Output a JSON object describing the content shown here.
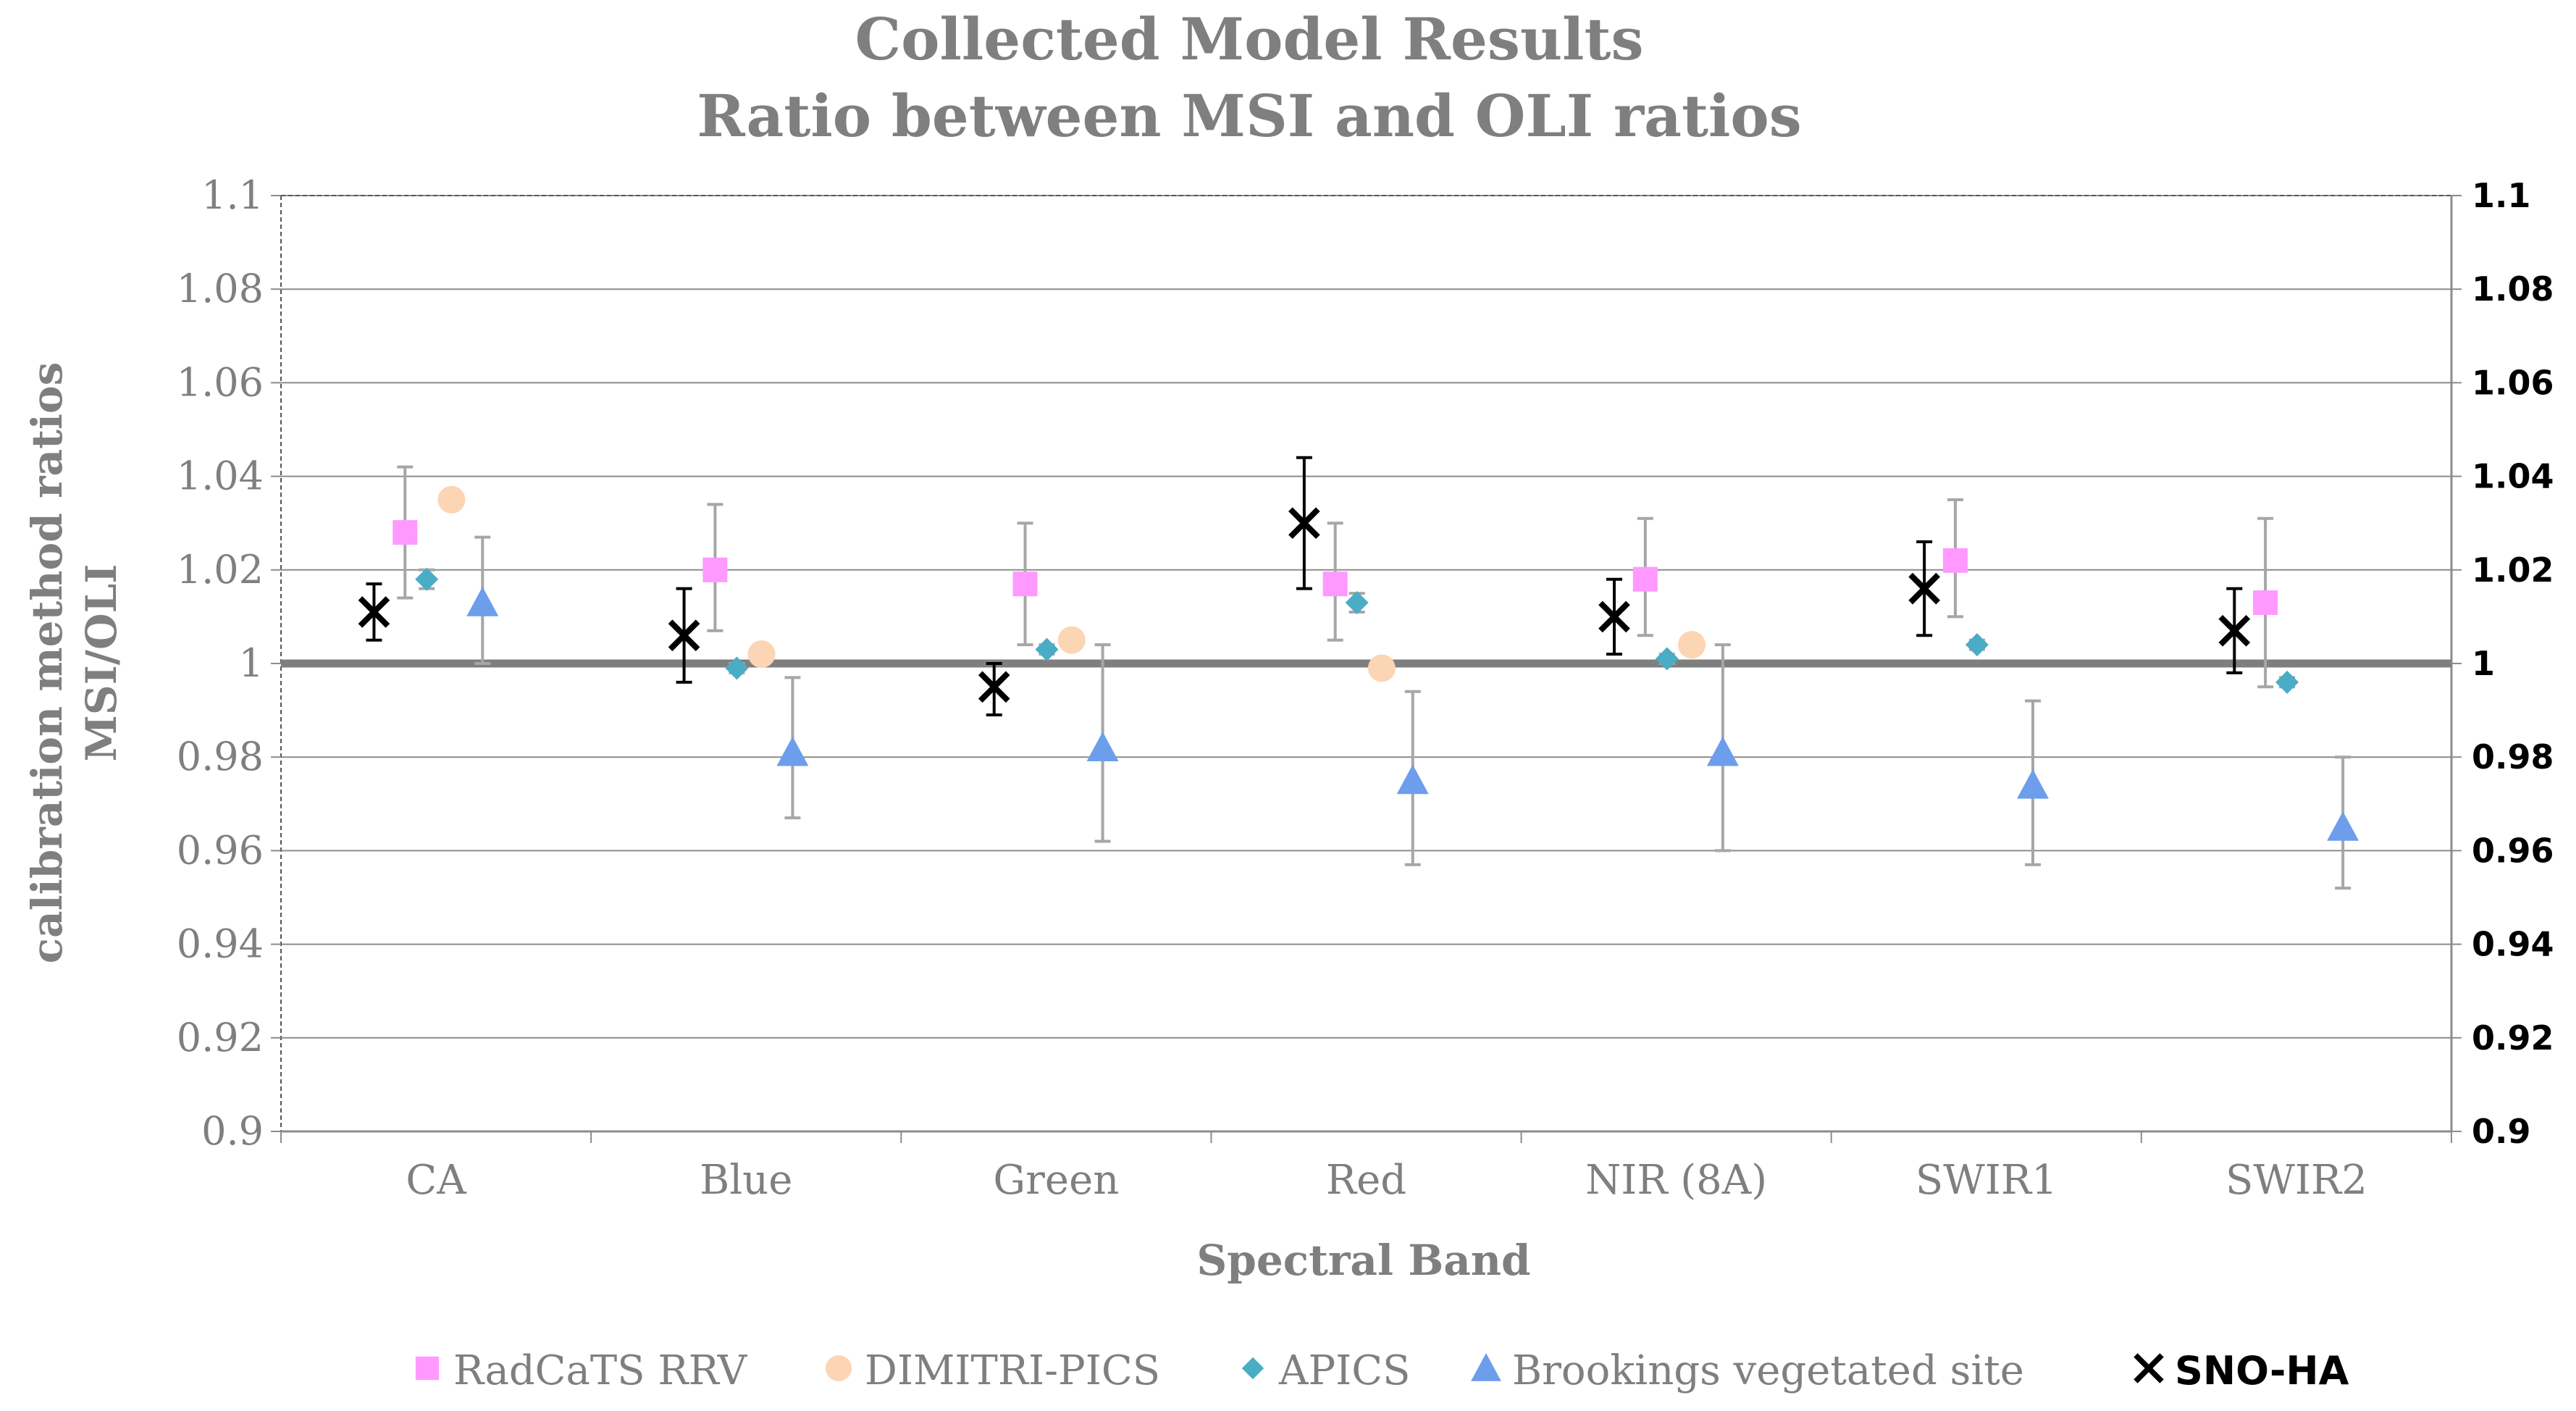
{
  "chart_data": {
    "type": "scatter",
    "title": "Collected Model Results",
    "subtitle": "Ratio between MSI and OLI ratios",
    "xlabel": "Spectral Band",
    "ylabel": "calibration method ratios",
    "ylabel2": "MSI/OLI",
    "ylim": [
      0.9,
      1.1
    ],
    "reference_line": 1.0,
    "y_ticks": [
      "0.9",
      "0.92",
      "0.94",
      "0.96",
      "0.98",
      "1",
      "1.02",
      "1.04",
      "1.06",
      "1.08",
      "1.1"
    ],
    "categories": [
      "CA",
      "Blue",
      "Green",
      "Red",
      "NIR (8A)",
      "SWIR1",
      "SWIR2"
    ],
    "legend_position": "bottom",
    "series": [
      {
        "name": "SNO-HA",
        "marker": "x",
        "color": "#000000",
        "offset": -0.2,
        "values": [
          1.011,
          1.006,
          0.995,
          1.03,
          1.01,
          1.016,
          1.007
        ],
        "err_low": [
          1.005,
          0.996,
          0.989,
          1.016,
          1.002,
          1.006,
          0.998
        ],
        "err_high": [
          1.017,
          1.016,
          1.0,
          1.044,
          1.018,
          1.026,
          1.016
        ]
      },
      {
        "name": "RadCaTS RRV",
        "marker": "square",
        "color": "#ff99ff",
        "offset": -0.1,
        "values": [
          1.028,
          1.02,
          1.017,
          1.017,
          1.018,
          1.022,
          1.013
        ],
        "err_low": [
          1.014,
          1.007,
          1.004,
          1.005,
          1.006,
          1.01,
          0.995
        ],
        "err_high": [
          1.042,
          1.034,
          1.03,
          1.03,
          1.031,
          1.035,
          1.031
        ]
      },
      {
        "name": "APICS",
        "marker": "diamond",
        "color": "#4bacc6",
        "offset": -0.03,
        "values": [
          1.018,
          0.999,
          1.003,
          1.013,
          1.001,
          1.004,
          0.996
        ],
        "err_low": [
          1.016,
          0.998,
          1.002,
          1.011,
          1.0,
          1.003,
          0.995
        ],
        "err_high": [
          1.02,
          1.0,
          1.004,
          1.015,
          1.002,
          1.005,
          0.997
        ]
      },
      {
        "name": "DIMITRI-PICS",
        "marker": "circle",
        "color": "#fcd5b4",
        "offset": 0.05,
        "values": [
          1.035,
          1.002,
          1.005,
          0.999,
          1.004
        ],
        "err_low": [
          1.033,
          1.0,
          1.003,
          0.997,
          1.002
        ],
        "err_high": [
          1.037,
          1.004,
          1.007,
          1.001,
          1.006
        ]
      },
      {
        "name": "Brookings vegetated site",
        "marker": "triangle",
        "color": "#6d9eeb",
        "offset": 0.15,
        "values": [
          1.013,
          0.981,
          0.982,
          0.975,
          0.981,
          0.974,
          0.965
        ],
        "err_low": [
          1.0,
          0.967,
          0.962,
          0.957,
          0.96,
          0.957,
          0.952
        ],
        "err_high": [
          1.027,
          0.997,
          1.004,
          0.994,
          1.004,
          0.992,
          0.98
        ]
      }
    ],
    "legend": [
      {
        "label": "RadCaTS RRV",
        "marker": "square",
        "color": "#ff99ff"
      },
      {
        "label": "DIMITRI-PICS",
        "marker": "circle",
        "color": "#fcd5b4"
      },
      {
        "label": "APICS",
        "marker": "diamond",
        "color": "#4bacc6"
      },
      {
        "label": "Brookings vegetated site",
        "marker": "triangle",
        "color": "#6d9eeb"
      },
      {
        "label": "SNO-HA",
        "marker": "x",
        "color": "#000000",
        "bold": true
      }
    ]
  }
}
